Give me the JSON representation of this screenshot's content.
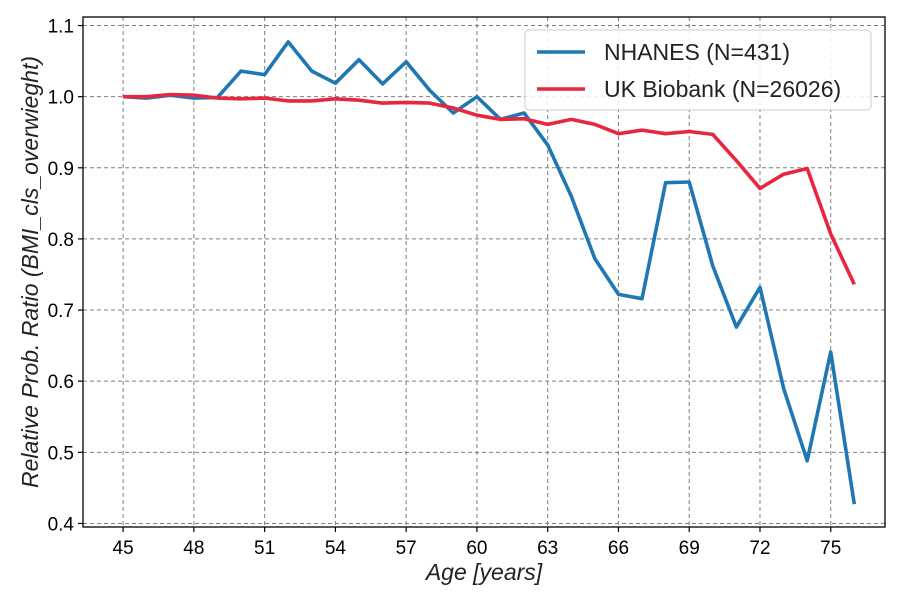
{
  "chart_data": {
    "type": "line",
    "title": "",
    "xlabel": "Age [years]",
    "ylabel": "Relative Prob. Ratio (BMI_cls_overwieght)",
    "xlim": [
      43.3,
      77.3
    ],
    "ylim": [
      0.395,
      1.112
    ],
    "xticks": [
      45,
      48,
      51,
      54,
      57,
      60,
      63,
      66,
      69,
      72,
      75
    ],
    "yticks": [
      0.4,
      0.5,
      0.6,
      0.7,
      0.8,
      0.9,
      1.0
    ],
    "yticks_top": 1.1,
    "ytick_labels": [
      "0.4",
      "0.5",
      "0.6",
      "0.7",
      "0.8",
      "0.9",
      "1.0",
      "1.1"
    ],
    "grid": true,
    "legend_position": "top-right",
    "x": [
      45,
      46,
      47,
      48,
      49,
      50,
      51,
      52,
      53,
      54,
      55,
      56,
      57,
      58,
      59,
      60,
      61,
      62,
      63,
      64,
      65,
      66,
      67,
      68,
      69,
      70,
      71,
      72,
      73,
      74,
      75,
      76
    ],
    "series": [
      {
        "name": "NHANES (N=431)",
        "color": "#1f77b4",
        "values": [
          1.0,
          0.998,
          1.002,
          0.998,
          0.999,
          1.036,
          1.031,
          1.077,
          1.036,
          1.019,
          1.052,
          1.018,
          1.049,
          1.009,
          0.977,
          1.0,
          0.968,
          0.977,
          0.932,
          0.86,
          0.772,
          0.722,
          0.716,
          0.879,
          0.88,
          0.762,
          0.676,
          0.732,
          0.59,
          0.488,
          0.641,
          0.427
        ]
      },
      {
        "name": "UK Biobank (N=26026)",
        "color": "#e8273f",
        "values": [
          1.0,
          1.0,
          1.003,
          1.002,
          0.998,
          0.997,
          0.998,
          0.994,
          0.994,
          0.997,
          0.995,
          0.991,
          0.992,
          0.991,
          0.984,
          0.974,
          0.968,
          0.969,
          0.961,
          0.968,
          0.961,
          0.948,
          0.953,
          0.948,
          0.951,
          0.947,
          0.91,
          0.871,
          0.891,
          0.899,
          0.807,
          0.736
        ]
      }
    ]
  }
}
